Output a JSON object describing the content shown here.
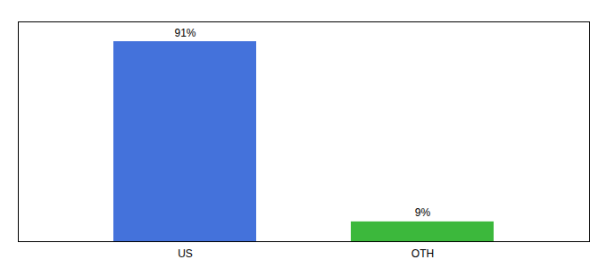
{
  "chart_data": {
    "type": "bar",
    "categories": [
      "US",
      "OTH"
    ],
    "values": [
      91,
      9
    ],
    "value_labels": [
      "91%",
      "9%"
    ],
    "colors": [
      "#4472db",
      "#3cb83c"
    ],
    "ylim": [
      0,
      100
    ],
    "yticks": [],
    "data_labels": true,
    "tick_labels": "x"
  }
}
